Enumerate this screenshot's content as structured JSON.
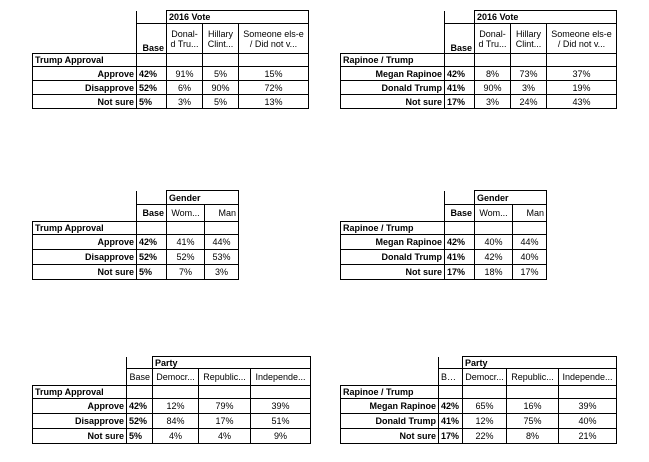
{
  "tables": [
    {
      "group_label": "2016 Vote",
      "base_label": "Base",
      "col_labels": [
        "Donal-d Tru...",
        "Hillary Clint...",
        "Someone els-e / Did not v..."
      ],
      "title": "Trump Approval",
      "rows": [
        {
          "label": "Approve",
          "base": "42%",
          "values": [
            "91%",
            "5%",
            "15%"
          ]
        },
        {
          "label": "Disapprove",
          "base": "52%",
          "values": [
            "6%",
            "90%",
            "72%"
          ]
        },
        {
          "label": "Not sure",
          "base": "5%",
          "values": [
            "3%",
            "5%",
            "13%"
          ]
        }
      ]
    },
    {
      "group_label": "2016 Vote",
      "base_label": "Base",
      "col_labels": [
        "Donal-d Tru...",
        "Hillary Clint...",
        "Someone els-e / Did not v..."
      ],
      "title": "Rapinoe / Trump",
      "rows": [
        {
          "label": "Megan Rapinoe",
          "base": "42%",
          "values": [
            "8%",
            "73%",
            "37%"
          ]
        },
        {
          "label": "Donald Trump",
          "base": "41%",
          "values": [
            "90%",
            "3%",
            "19%"
          ]
        },
        {
          "label": "Not sure",
          "base": "17%",
          "values": [
            "3%",
            "24%",
            "43%"
          ]
        }
      ]
    },
    {
      "group_label": "Gender",
      "base_label": "Base",
      "col_labels": [
        "Wom...",
        "Man"
      ],
      "title": "Trump Approval",
      "rows": [
        {
          "label": "Approve",
          "base": "42%",
          "values": [
            "41%",
            "44%"
          ]
        },
        {
          "label": "Disapprove",
          "base": "52%",
          "values": [
            "52%",
            "53%"
          ]
        },
        {
          "label": "Not sure",
          "base": "5%",
          "values": [
            "7%",
            "3%"
          ]
        }
      ]
    },
    {
      "group_label": "Gender",
      "base_label": "Base",
      "col_labels": [
        "Wom...",
        "Man"
      ],
      "title": "Rapinoe / Trump",
      "rows": [
        {
          "label": "Megan Rapinoe",
          "base": "42%",
          "values": [
            "40%",
            "44%"
          ]
        },
        {
          "label": "Donald Trump",
          "base": "41%",
          "values": [
            "42%",
            "40%"
          ]
        },
        {
          "label": "Not sure",
          "base": "17%",
          "values": [
            "18%",
            "17%"
          ]
        }
      ]
    },
    {
      "group_label": "Party",
      "base_label": "Base",
      "col_labels": [
        "Democr...",
        "Republic...",
        "Independe..."
      ],
      "title": "Trump Approval",
      "rows": [
        {
          "label": "Approve",
          "base": "42%",
          "values": [
            "12%",
            "79%",
            "39%"
          ]
        },
        {
          "label": "Disapprove",
          "base": "52%",
          "values": [
            "84%",
            "17%",
            "51%"
          ]
        },
        {
          "label": "Not sure",
          "base": "5%",
          "values": [
            "4%",
            "4%",
            "9%"
          ]
        }
      ]
    },
    {
      "group_label": "Party",
      "base_label": "Base",
      "col_labels": [
        "Democr...",
        "Republic...",
        "Independe..."
      ],
      "title": "Rapinoe / Trump",
      "rows": [
        {
          "label": "Megan Rapinoe",
          "base": "42%",
          "values": [
            "65%",
            "16%",
            "39%"
          ]
        },
        {
          "label": "Donald Trump",
          "base": "41%",
          "values": [
            "12%",
            "75%",
            "40%"
          ]
        },
        {
          "label": "Not sure",
          "base": "17%",
          "values": [
            "22%",
            "8%",
            "21%"
          ]
        }
      ]
    }
  ]
}
